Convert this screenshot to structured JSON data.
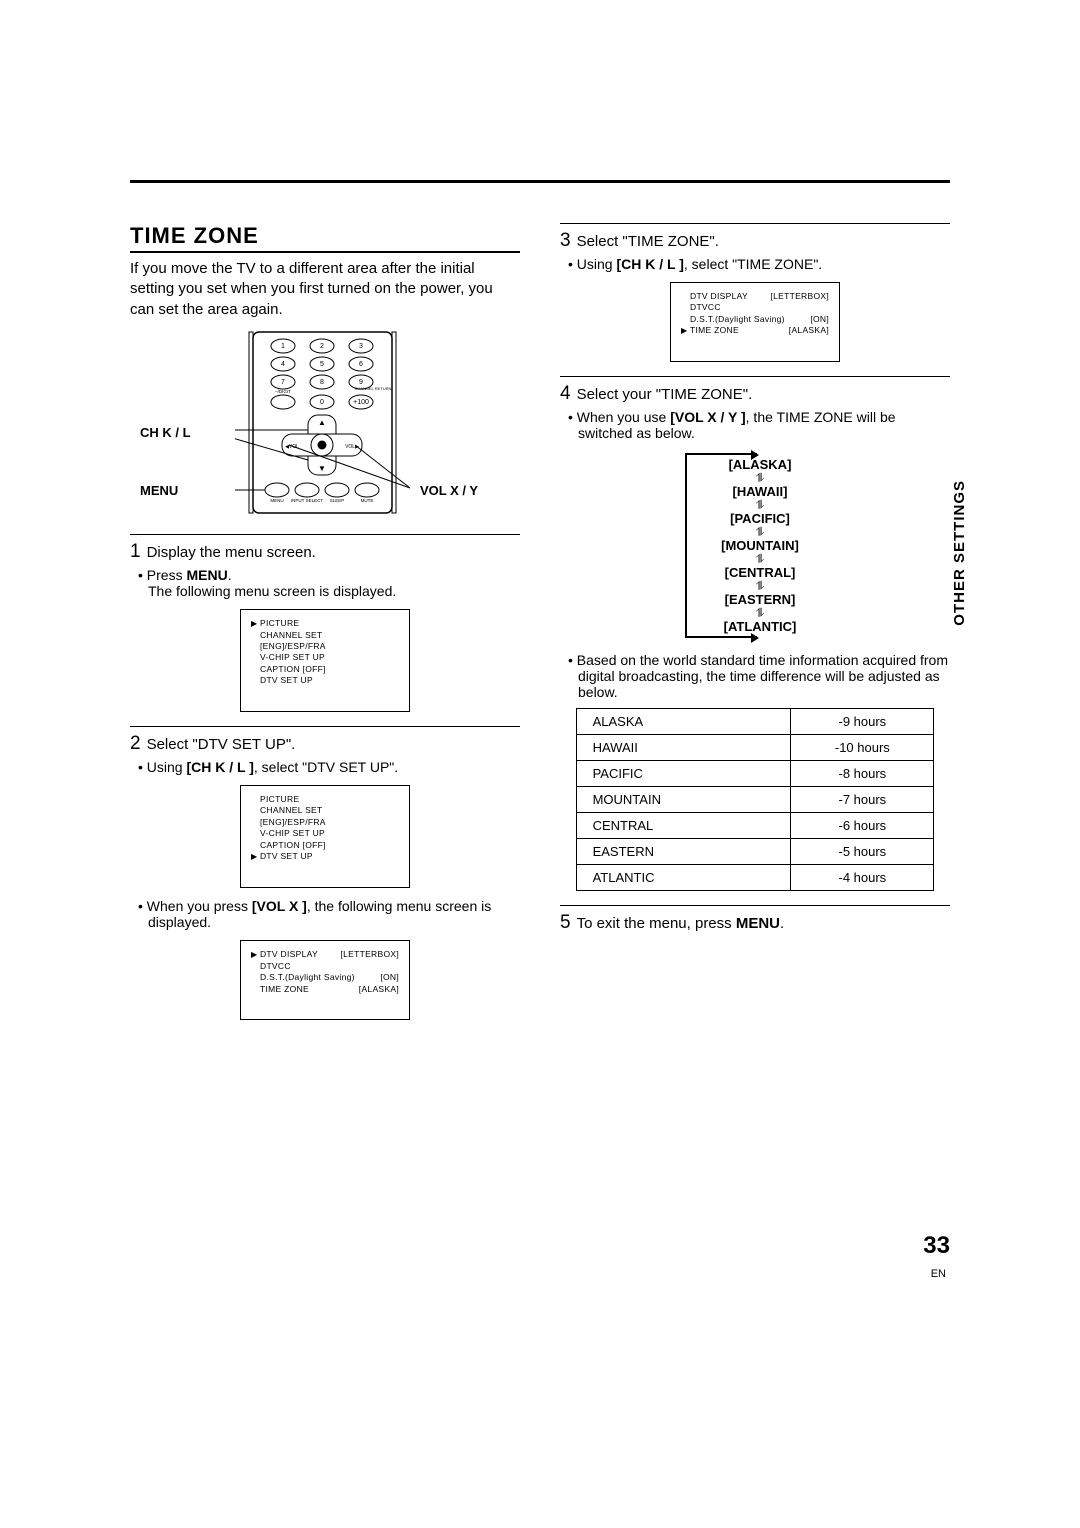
{
  "page": {
    "number": "33",
    "lang": "EN",
    "side_tab": "OTHER SETTINGS"
  },
  "section": {
    "title": "TIME ZONE",
    "intro": "If you move the TV to a different area after the initial setting you set when you first turned on the power, you can set the area again."
  },
  "remote": {
    "labels": {
      "ch": "CH K / L",
      "menu": "MENU",
      "vol": "VOL X / Y"
    },
    "tiny": {
      "digit": "–/DIGIT",
      "channel_return": "CHANNEL RETURN",
      "plus100": "+100",
      "vol_left": "VOL",
      "vol_right": "VOL",
      "menu": "MENU",
      "input": "INPUT SELECT",
      "sleep": "SLEEP",
      "mute": "MUTE"
    }
  },
  "steps": {
    "s1": {
      "num": "1",
      "text": "Display the menu screen.",
      "b1_pre": "Press ",
      "b1_bold": "MENU",
      "b1_post": ".",
      "b1_line2": "The following menu screen is displayed."
    },
    "s2": {
      "num": "2",
      "text": "Select \"DTV SET UP\".",
      "b1_pre": "Using ",
      "b1_bold": "[CH K / L ]",
      "b1_post": ", select \"DTV SET UP\".",
      "b2_pre": "When you press ",
      "b2_bold": "[VOL X ]",
      "b2_post": ", the following menu screen is displayed."
    },
    "s3": {
      "num": "3",
      "text": "Select \"TIME ZONE\".",
      "b1_pre": "Using ",
      "b1_bold": "[CH K / L ]",
      "b1_post": ", select \"TIME ZONE\"."
    },
    "s4": {
      "num": "4",
      "text": "Select your \"TIME ZONE\".",
      "b1_pre": "When you use ",
      "b1_bold": "[VOL X / Y ]",
      "b1_post": ", the TIME ZONE will be switched as below.",
      "b2": "Based on the world standard time information acquired from digital broadcasting, the time difference will be adjusted as below."
    },
    "s5": {
      "num": "5",
      "text_pre": "To exit the menu, press ",
      "text_bold": "MENU",
      "text_post": "."
    }
  },
  "menus": {
    "main": {
      "rows": [
        {
          "label": "PICTURE",
          "sel": true
        },
        {
          "label": "CHANNEL SET"
        },
        {
          "label": "[ENG]/ESP/FRA"
        },
        {
          "label": "V-CHIP SET UP"
        },
        {
          "label": "CAPTION [OFF]"
        },
        {
          "label": "DTV SET UP"
        }
      ]
    },
    "main2": {
      "rows": [
        {
          "label": "PICTURE"
        },
        {
          "label": "CHANNEL SET"
        },
        {
          "label": "[ENG]/ESP/FRA"
        },
        {
          "label": "V-CHIP SET UP"
        },
        {
          "label": "CAPTION [OFF]"
        },
        {
          "label": "DTV SET UP",
          "sel": true
        }
      ]
    },
    "dtv1": {
      "rows": [
        {
          "label": "DTV DISPLAY",
          "val": "[LETTERBOX]",
          "sel": true
        },
        {
          "label": "DTVCC"
        },
        {
          "label": "D.S.T.(Daylight Saving)",
          "val": "[ON]"
        },
        {
          "label": "TIME ZONE",
          "val": "[ALASKA]"
        }
      ]
    },
    "dtv2": {
      "rows": [
        {
          "label": "DTV DISPLAY",
          "val": "[LETTERBOX]"
        },
        {
          "label": "DTVCC"
        },
        {
          "label": "D.S.T.(Daylight Saving)",
          "val": "[ON]"
        },
        {
          "label": "TIME ZONE",
          "val": "[ALASKA]",
          "sel": true
        }
      ]
    }
  },
  "tz_chain": [
    "[ALASKA]",
    "[HAWAII]",
    "[PACIFIC]",
    "[MOUNTAIN]",
    "[CENTRAL]",
    "[EASTERN]",
    "[ATLANTIC]"
  ],
  "offsets": [
    {
      "zone": "ALASKA",
      "off": "-9 hours"
    },
    {
      "zone": "HAWAII",
      "off": "-10 hours"
    },
    {
      "zone": "PACIFIC",
      "off": "-8 hours"
    },
    {
      "zone": "MOUNTAIN",
      "off": "-7 hours"
    },
    {
      "zone": "CENTRAL",
      "off": "-6 hours"
    },
    {
      "zone": "EASTERN",
      "off": "-5 hours"
    },
    {
      "zone": "ATLANTIC",
      "off": "-4 hours"
    }
  ]
}
